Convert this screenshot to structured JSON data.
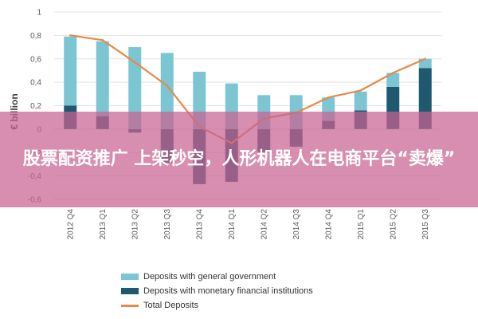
{
  "banner": {
    "text": "股票配资推广 上架秒空，人形机器人在电商平台“卖爆”"
  },
  "colors": {
    "general_government": "#7cc5d3",
    "monetary_fin_inst": "#1f5970",
    "total_deposits": "#e58a4a",
    "banner_overlay": "#c86292"
  },
  "chart_data": {
    "type": "bar",
    "title": "",
    "xlabel": "",
    "ylabel": "€ billion",
    "ylim": [
      -0.6,
      1.0
    ],
    "yticks": [
      "1",
      "0,8",
      "0,6",
      "0,4",
      "0,2",
      "0",
      "-0,2",
      "-0,4",
      "-0,6"
    ],
    "ytick_values": [
      1.0,
      0.8,
      0.6,
      0.4,
      0.2,
      0.0,
      -0.2,
      -0.4,
      -0.6
    ],
    "categories": [
      "2012 Q4",
      "2013 Q1",
      "2013 Q2",
      "2013 Q3",
      "2013 Q4",
      "2014 Q1",
      "2014 Q2",
      "2014 Q3",
      "2014 Q4",
      "2015 Q1",
      "2015 Q2",
      "2015 Q3"
    ],
    "series": [
      {
        "name": "Deposits with general government",
        "kind": "bar",
        "values": [
          0.59,
          0.64,
          0.7,
          0.65,
          0.49,
          0.39,
          0.29,
          0.29,
          0.2,
          0.16,
          0.12,
          0.08
        ]
      },
      {
        "name": "Deposits with monetary financial institutions",
        "kind": "bar",
        "values": [
          0.2,
          0.11,
          -0.03,
          -0.29,
          -0.47,
          -0.45,
          -0.2,
          -0.15,
          0.07,
          0.16,
          0.36,
          0.52
        ]
      },
      {
        "name": "Total Deposits",
        "kind": "line",
        "values": [
          0.8,
          0.76,
          0.57,
          0.37,
          0.02,
          -0.12,
          0.09,
          0.14,
          0.27,
          0.33,
          0.48,
          0.6
        ]
      }
    ],
    "legend": [
      "Deposits with general government",
      "Deposits with monetary financial institutions",
      "Total Deposits"
    ],
    "legend_position": "bottom"
  }
}
